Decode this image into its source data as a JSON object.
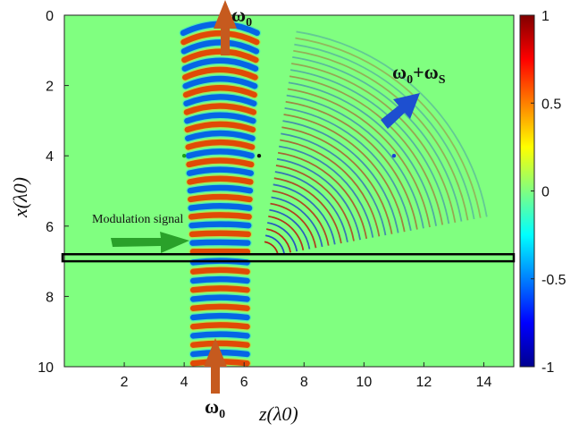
{
  "chart_data": {
    "type": "heatmap",
    "title": "",
    "xlabel": "z(λ0)",
    "ylabel": "x(λ0)",
    "xlim": [
      0,
      15
    ],
    "ylim": [
      0,
      10
    ],
    "y_reversed": true,
    "x_ticks": [
      "2",
      "4",
      "6",
      "8",
      "10",
      "12",
      "14"
    ],
    "x_tick_values": [
      2,
      4,
      6,
      8,
      10,
      12,
      14
    ],
    "y_ticks": [
      "0",
      "2",
      "4",
      "6",
      "8",
      "10"
    ],
    "y_tick_values": [
      0,
      2,
      4,
      6,
      8,
      10
    ],
    "colorbar": {
      "colormap": "jet",
      "range": [
        -1,
        1
      ],
      "ticks": [
        "1",
        "0.5",
        "0",
        "-0.5",
        "-1"
      ],
      "tick_values": [
        1,
        0.5,
        0,
        -0.5,
        -1
      ]
    },
    "background_color": "#80ff80",
    "beam": {
      "center_z": 5.2,
      "width_z": 1.8,
      "x_range": [
        0,
        10
      ]
    },
    "modulation_region": {
      "x_center": 6.9,
      "x_halfwidth": 0.1,
      "z_range": [
        0,
        15
      ]
    },
    "probe_points": [
      {
        "z": 4.0,
        "x": 4.0,
        "color": "#1a9f1a"
      },
      {
        "z": 6.5,
        "x": 4.0,
        "color": "#111111"
      },
      {
        "z": 11.0,
        "x": 4.0,
        "color": "#1b3fd6"
      }
    ],
    "annotations": {
      "omega_top": {
        "base": "ω",
        "sub": "0"
      },
      "omega_bottom": {
        "base": "ω",
        "sub": "0"
      },
      "omega_sum": {
        "base": "ω",
        "sub1": "0",
        "plus": "+ω",
        "sub2": "S"
      },
      "modulation": "Modulation signal"
    },
    "arrow_colors": {
      "input": "#c65a1e",
      "output_fundamental": "#c65a1e",
      "sideband": "#1d4fd0",
      "modulation": "#2aa12a"
    }
  }
}
